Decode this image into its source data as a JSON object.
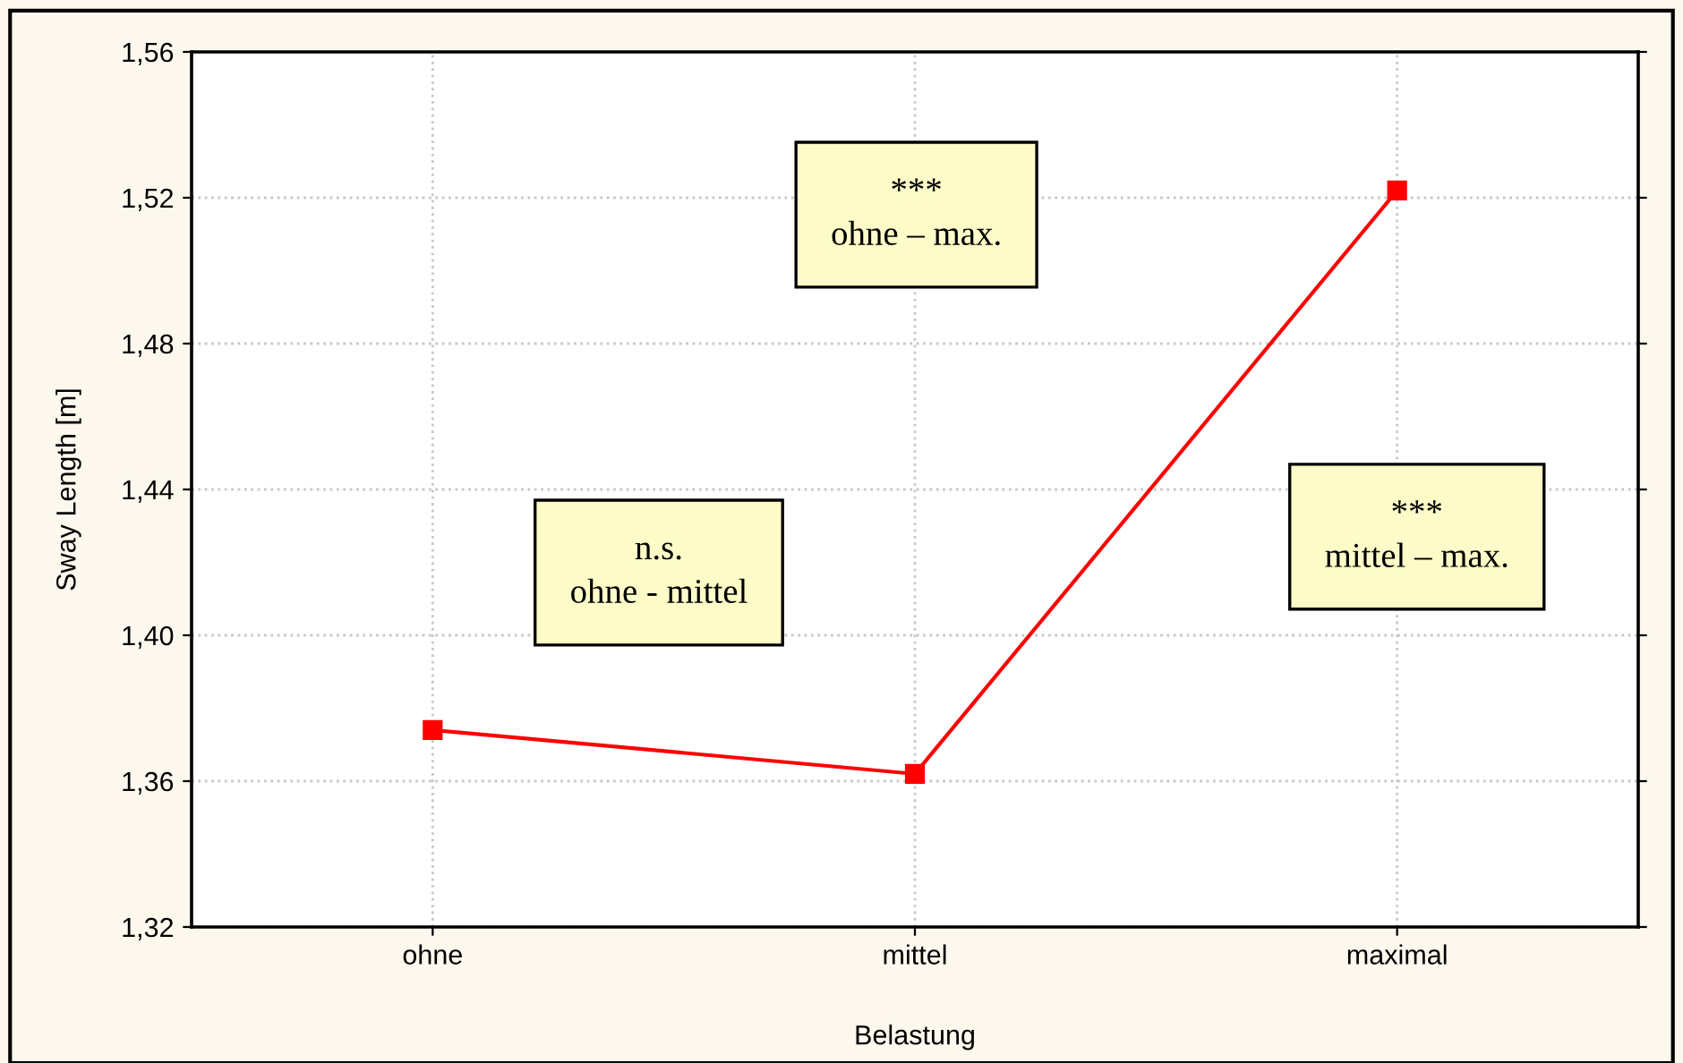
{
  "chart_data": {
    "type": "line",
    "xlabel": "Belastung",
    "ylabel": "Sway Length [m]",
    "categories": [
      "ohne",
      "mittel",
      "maximal"
    ],
    "series": [
      {
        "color": "#ff0000",
        "values": [
          1.374,
          1.362,
          1.522
        ]
      }
    ],
    "ylim": [
      1.32,
      1.56
    ],
    "yticks": [
      {
        "value": 1.32,
        "label": "1,32"
      },
      {
        "value": 1.36,
        "label": "1,36"
      },
      {
        "value": 1.4,
        "label": "1,40"
      },
      {
        "value": 1.44,
        "label": "1,44"
      },
      {
        "value": 1.48,
        "label": "1,48"
      },
      {
        "value": 1.52,
        "label": "1,52"
      },
      {
        "value": 1.56,
        "label": "1,56"
      }
    ],
    "grid": true,
    "marker": "square",
    "line_style": "solid",
    "annotations": [
      "n.s.\nohne - mittel",
      "***\nohne – max.",
      "***\nmittel – max."
    ]
  }
}
